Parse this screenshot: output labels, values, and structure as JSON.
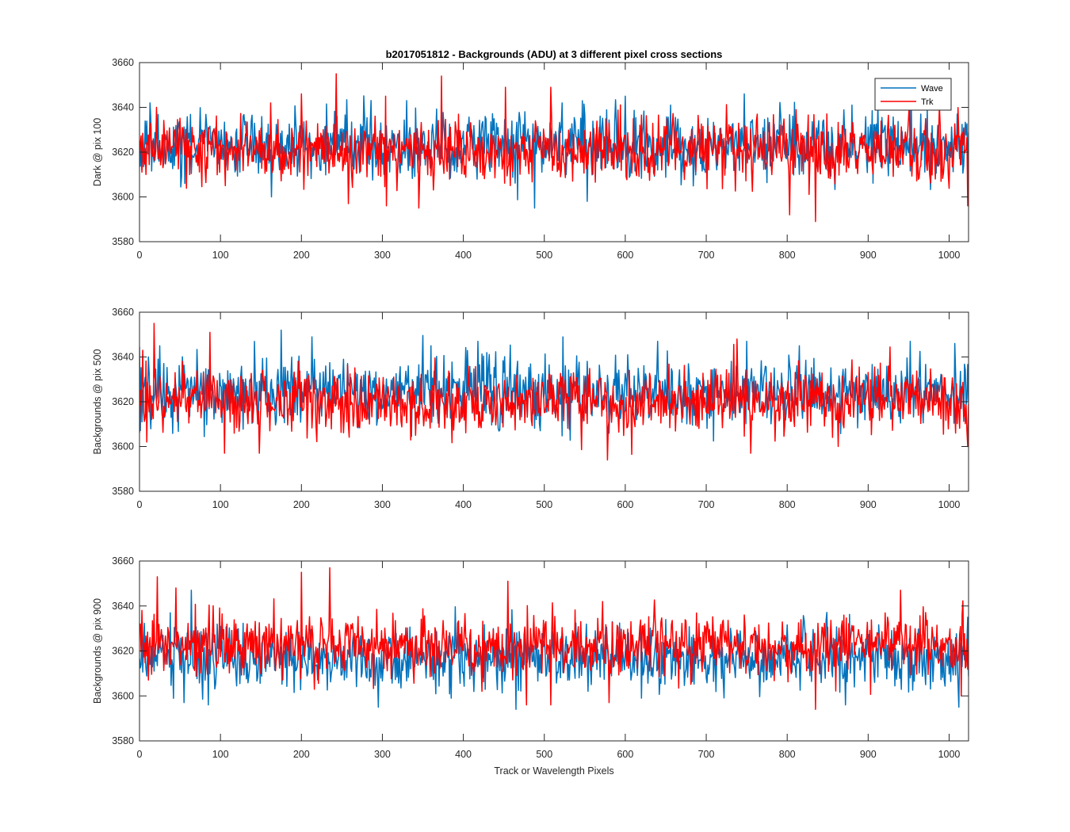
{
  "figure": {
    "title": "b2017051812 - Backgrounds (ADU) at 3 different pixel cross sections",
    "xlabel": "Track or Wavelength Pixels"
  },
  "legend": [
    {
      "name": "Wave",
      "color": "#0072BD"
    },
    {
      "name": "Trk",
      "color": "#FF0000"
    }
  ],
  "chart_data": [
    {
      "type": "line",
      "ylabel": "Dark @ pix 100",
      "xlim": [
        0,
        1024
      ],
      "ylim": [
        3580,
        3660
      ],
      "xticks": [
        0,
        100,
        200,
        300,
        400,
        500,
        600,
        700,
        800,
        900,
        1000
      ],
      "yticks": [
        3580,
        3600,
        3620,
        3640,
        3660
      ],
      "grid": false,
      "legend_position": "top-right",
      "series": [
        {
          "name": "Wave",
          "color": "#0072BD",
          "mean": 3623,
          "spread": 7,
          "min": 3595,
          "max": 3648
        },
        {
          "name": "Trk",
          "color": "#FF0000",
          "mean": 3621,
          "spread": 7,
          "min": 3589,
          "max": 3655
        }
      ],
      "peaks": {
        "Wave": [
          [
            3,
            3612
          ],
          [
            13,
            3642
          ],
          [
            56,
            3606
          ],
          [
            163,
            3600
          ],
          [
            330,
            3643
          ],
          [
            488,
            3595
          ],
          [
            522,
            3642
          ],
          [
            553,
            3598
          ],
          [
            600,
            3645
          ],
          [
            656,
            3641
          ],
          [
            747,
            3646
          ],
          [
            880,
            3641
          ],
          [
            912,
            3641
          ],
          [
            953,
            3648
          ],
          [
            1010,
            3637
          ]
        ],
        "Trk": [
          [
            8,
            3610
          ],
          [
            21,
            3640
          ],
          [
            162,
            3642
          ],
          [
            200,
            3646
          ],
          [
            243,
            3655
          ],
          [
            258,
            3597
          ],
          [
            305,
            3596
          ],
          [
            345,
            3595
          ],
          [
            373,
            3654
          ],
          [
            452,
            3649
          ],
          [
            508,
            3649
          ],
          [
            763,
            3637
          ],
          [
            803,
            3592
          ],
          [
            835,
            3589
          ],
          [
            1023,
            3596
          ]
        ]
      }
    },
    {
      "type": "line",
      "ylabel": "Backgrounds @ pix 500",
      "xlim": [
        0,
        1024
      ],
      "ylim": [
        3580,
        3660
      ],
      "xticks": [
        0,
        100,
        200,
        300,
        400,
        500,
        600,
        700,
        800,
        900,
        1000
      ],
      "yticks": [
        3580,
        3600,
        3620,
        3640,
        3660
      ],
      "grid": false,
      "series": [
        {
          "name": "Wave",
          "color": "#0072BD",
          "mean": 3624,
          "spread": 8,
          "min": 3600,
          "max": 3652
        },
        {
          "name": "Trk",
          "color": "#FF0000",
          "mean": 3620,
          "spread": 7,
          "min": 3594,
          "max": 3655
        }
      ],
      "peaks": {
        "Wave": [
          [
            3,
            3611
          ],
          [
            175,
            3652
          ],
          [
            213,
            3649
          ],
          [
            360,
            3645
          ],
          [
            418,
            3647
          ],
          [
            523,
            3649
          ],
          [
            640,
            3647
          ],
          [
            750,
            3647
          ],
          [
            815,
            3645
          ],
          [
            952,
            3647
          ],
          [
            1007,
            3646
          ]
        ],
        "Trk": [
          [
            4,
            3643
          ],
          [
            9,
            3602
          ],
          [
            18,
            3655
          ],
          [
            87,
            3651
          ],
          [
            105,
            3597
          ],
          [
            148,
            3597
          ],
          [
            578,
            3594
          ],
          [
            738,
            3648
          ],
          [
            755,
            3597
          ],
          [
            863,
            3600
          ],
          [
            1023,
            3600
          ]
        ]
      }
    },
    {
      "type": "line",
      "ylabel": "Backgrounds @ pix 900",
      "xlim": [
        0,
        1024
      ],
      "ylim": [
        3580,
        3660
      ],
      "xticks": [
        0,
        100,
        200,
        300,
        400,
        500,
        600,
        700,
        800,
        900,
        1000
      ],
      "yticks": [
        3580,
        3600,
        3620,
        3640,
        3660
      ],
      "grid": false,
      "series": [
        {
          "name": "Wave",
          "color": "#0072BD",
          "mean": 3617,
          "spread": 7,
          "min": 3594,
          "max": 3647
        },
        {
          "name": "Trk",
          "color": "#FF0000",
          "mean": 3623,
          "spread": 7,
          "min": 3594,
          "max": 3657
        }
      ],
      "peaks": {
        "Wave": [
          [
            55,
            3597
          ],
          [
            64,
            3647
          ],
          [
            85,
            3596
          ],
          [
            295,
            3595
          ],
          [
            465,
            3594
          ],
          [
            620,
            3599
          ],
          [
            872,
            3596
          ],
          [
            1012,
            3595
          ],
          [
            1023,
            3635
          ]
        ],
        "Trk": [
          [
            22,
            3653
          ],
          [
            45,
            3648
          ],
          [
            200,
            3655
          ],
          [
            235,
            3657
          ],
          [
            455,
            3651
          ],
          [
            478,
            3596
          ],
          [
            508,
            3596
          ],
          [
            580,
            3597
          ],
          [
            835,
            3594
          ],
          [
            940,
            3647
          ],
          [
            1015,
            3600
          ]
        ]
      }
    }
  ]
}
